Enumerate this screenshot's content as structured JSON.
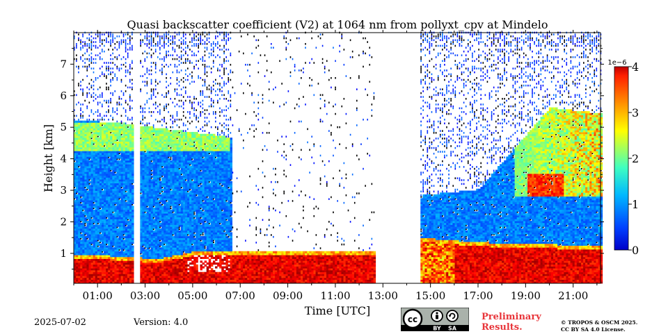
{
  "chart_data": {
    "type": "heatmap",
    "title": "Quasi backscatter coefficient (V2) at 1064 nm from pollyxt_cpv at Mindelo",
    "xlabel": "Time [UTC]",
    "ylabel": "Height [km]",
    "xlim_hours": [
      0.0,
      22.15
    ],
    "ylim_km": [
      0.05,
      8.0
    ],
    "x_ticks": [
      "01:00",
      "03:00",
      "05:00",
      "07:00",
      "09:00",
      "11:00",
      "13:00",
      "15:00",
      "17:00",
      "19:00",
      "21:00"
    ],
    "x_tick_hours": [
      1,
      3,
      5,
      7,
      9,
      11,
      13,
      15,
      17,
      19,
      21
    ],
    "y_ticks": [
      "1",
      "2",
      "3",
      "4",
      "5",
      "6",
      "7"
    ],
    "y_tick_values": [
      1,
      2,
      3,
      4,
      5,
      6,
      7
    ],
    "colorbar": {
      "label_exponent": "1e−6",
      "ticks": [
        "0",
        "1",
        "2",
        "3",
        "4"
      ],
      "tick_values": [
        0,
        1,
        2,
        3,
        4
      ],
      "range": [
        0,
        4
      ],
      "colormap": "jet"
    },
    "data_gaps_hours": [
      [
        2.55,
        2.72
      ],
      [
        12.7,
        14.5
      ]
    ],
    "features": {
      "boundary_layer_top_km": [
        [
          0.0,
          0.8
        ],
        [
          2.5,
          0.75
        ],
        [
          3.3,
          0.65
        ],
        [
          5.0,
          0.9
        ],
        [
          6.5,
          0.95
        ],
        [
          8.0,
          0.95
        ],
        [
          12.7,
          0.95
        ],
        [
          14.5,
          1.35
        ],
        [
          17.0,
          1.2
        ],
        [
          19.0,
          1.15
        ],
        [
          22.15,
          1.1
        ]
      ],
      "aerosol_layer_top_km": [
        [
          0.0,
          5.2
        ],
        [
          2.0,
          5.1
        ],
        [
          4.0,
          4.9
        ],
        [
          6.2,
          4.7
        ],
        [
          14.5,
          2.8
        ],
        [
          17.0,
          3.0
        ],
        [
          20.0,
          5.6
        ],
        [
          22.15,
          5.4
        ]
      ]
    }
  },
  "footer": {
    "date": "2025-07-02",
    "version": "Version: 4.0",
    "license_badge": [
      "BY",
      "SA"
    ],
    "preliminary_line1": "Preliminary",
    "preliminary_line2": "Results.",
    "copyright_line1": "© TROPOS & OSCM 2025.",
    "copyright_line2": "CC BY SA 4.0 License."
  },
  "colors": {
    "preliminary": "#e8353a",
    "badge_bg": "#aab2ab",
    "badge_dark": "#000000"
  }
}
